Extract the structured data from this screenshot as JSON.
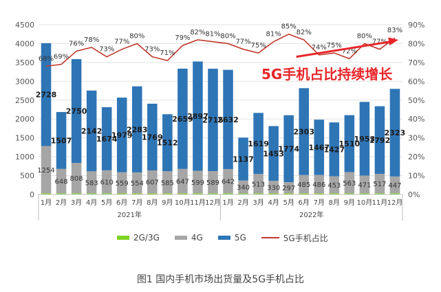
{
  "chart_data": {
    "type": "bar",
    "categories": [
      "1月",
      "2月",
      "3月",
      "4月",
      "5月",
      "6月",
      "7月",
      "8月",
      "9月",
      "10月",
      "11月",
      "12月",
      "1月",
      "2月",
      "3月",
      "4月",
      "5月",
      "6月",
      "7月",
      "8月",
      "9月",
      "10月",
      "11月",
      "12月"
    ],
    "year_groups": [
      {
        "label": "2021年",
        "from": 0,
        "to": 11
      },
      {
        "label": "2022年",
        "from": 12,
        "to": 23
      }
    ],
    "series": [
      {
        "name": "2G/3G",
        "type": "bar",
        "stack": "total",
        "color": "#7ed321",
        "values": [
          30,
          30,
          30,
          30,
          30,
          30,
          30,
          30,
          30,
          30,
          30,
          30,
          30,
          30,
          30,
          30,
          30,
          30,
          30,
          30,
          30,
          30,
          30,
          30
        ]
      },
      {
        "name": "4G",
        "type": "bar",
        "stack": "total",
        "color": "#a6a6a6",
        "values": [
          1254,
          648,
          808,
          583,
          610,
          559,
          554,
          607,
          585,
          647,
          599,
          589,
          642,
          340,
          513,
          330,
          297,
          485,
          486,
          453,
          563,
          471,
          517,
          447
        ]
      },
      {
        "name": "5G",
        "type": "bar",
        "stack": "total",
        "color": "#2e75b6",
        "values": [
          2728,
          1507,
          2750,
          2142,
          1674,
          1979,
          2283,
          1769,
          1512,
          2659,
          2897,
          2715,
          2632,
          1137,
          1619,
          1453,
          1774,
          2303,
          1467,
          1427,
          1510,
          1953,
          1792,
          2323
        ]
      },
      {
        "name": "5G手机占比",
        "type": "line",
        "axis": "right",
        "color": "#c0392b",
        "values": [
          68,
          69,
          76,
          78,
          73,
          77,
          80,
          73,
          71,
          79,
          82,
          81,
          80,
          77,
          75,
          81,
          85,
          82,
          74,
          75,
          72,
          80,
          77,
          83
        ]
      }
    ],
    "bar_labels_4g": [
      "1254",
      "648",
      "808",
      "583",
      "610",
      "559",
      "554",
      "607",
      "585",
      "647",
      "599",
      "589",
      "642",
      "340",
      "513",
      "330",
      "297",
      "485",
      "486",
      "453",
      "563",
      "471",
      "517",
      "447"
    ],
    "bar_labels_5g": [
      "2728",
      "1507",
      "2750",
      "2142",
      "1674",
      "1979",
      "2283",
      "1769",
      "1512",
      "2659",
      "2897",
      "2715",
      "2632",
      "1137",
      "1619",
      "1453",
      "1774",
      "2303",
      "1467",
      "1427",
      "1510",
      "1953",
      "1792",
      "2323"
    ],
    "line_labels": [
      "68%",
      "69%",
      "76%",
      "78%",
      "73%",
      "77%",
      "80%",
      "73%",
      "71%",
      "79%",
      "82%",
      "81%",
      "80%",
      "77%",
      "75%",
      "81%",
      "85%",
      "82%",
      "74%",
      "75%",
      "72%",
      "80%",
      "77%",
      "83%"
    ],
    "y_left": {
      "min": 0,
      "max": 4500,
      "ticks": [
        "0",
        "500",
        "1000",
        "1500",
        "2000",
        "2500",
        "3000",
        "3500",
        "4000",
        "4500"
      ]
    },
    "y_right": {
      "min": 0,
      "max": 90,
      "ticks": [
        "0%",
        "10%",
        "20%",
        "30%",
        "40%",
        "50%",
        "60%",
        "70%",
        "80%",
        "90%"
      ]
    },
    "grid": true,
    "legend_position": "bottom",
    "colors": {
      "g2g3": "#7ed321",
      "g4": "#a6a6a6",
      "g5": "#2e75b6",
      "ratio_line": "#c0392b",
      "arrow": "#e8262a",
      "annotation": "#e8262a"
    }
  },
  "legend": {
    "g2g3": "2G/3G",
    "g4": "4G",
    "g5": "5G",
    "ratio": "5G手机占比"
  },
  "annotation": "5G手机占比持续增长",
  "caption": "图1 国内手机市场出货量及5G手机占比"
}
